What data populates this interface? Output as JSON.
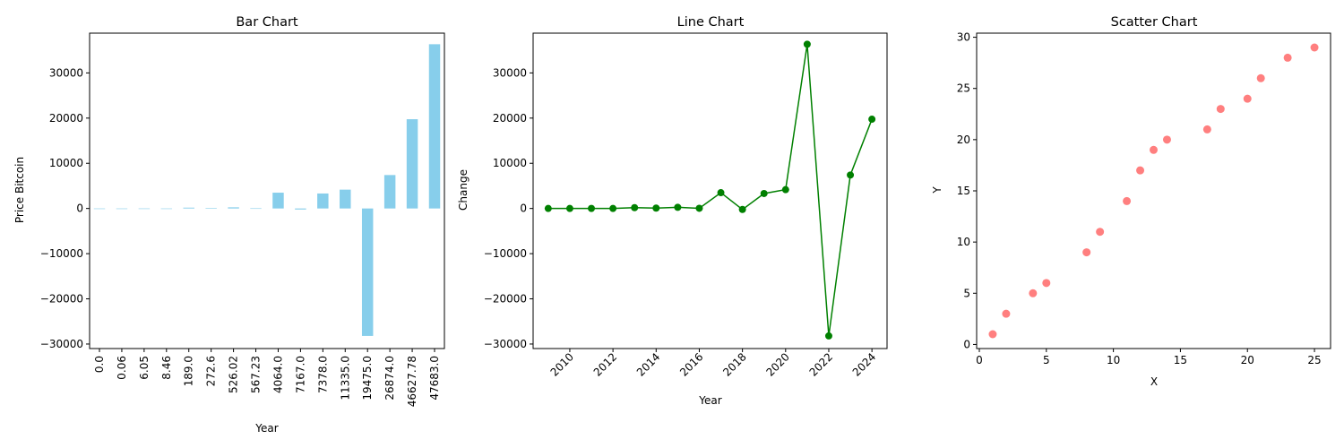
{
  "chart_data": [
    {
      "type": "bar",
      "title": "Bar Chart",
      "xlabel": "Year",
      "ylabel": "Price Bitcoin",
      "categories": [
        "0.0",
        "0.06",
        "6.05",
        "8.46",
        "189.0",
        "272.6",
        "526.02",
        "567.23",
        "4064.0",
        "7167.0",
        "7378.0",
        "11335.0",
        "19475.0",
        "26874.0",
        "46627.78",
        "47683.0"
      ],
      "values": [
        0,
        0.06,
        5.99,
        2.41,
        180.54,
        83.6,
        253.42,
        41.21,
        3496.77,
        -227.0,
        3314.0,
        4168.0,
        -28208.0,
        7399.0,
        19753.78,
        36348.0
      ],
      "ylim": [
        -31000,
        38800
      ],
      "yticks": [
        -30000,
        -20000,
        -10000,
        0,
        10000,
        20000,
        30000
      ],
      "color": "#87ceeb",
      "grid": false
    },
    {
      "type": "line",
      "title": "Line Chart",
      "xlabel": "Year",
      "ylabel": "Change",
      "x": [
        2009,
        2010,
        2011,
        2012,
        2013,
        2014,
        2015,
        2016,
        2017,
        2018,
        2019,
        2020,
        2021,
        2022,
        2023,
        2024
      ],
      "values": [
        0,
        0.06,
        5.99,
        2.41,
        180.54,
        83.6,
        253.42,
        41.21,
        3496.77,
        -227.0,
        3314.0,
        4168.0,
        36348.0,
        -28208.0,
        7399.0,
        19753.78
      ],
      "xlim": [
        2008.3,
        2024.7
      ],
      "xticks": [
        2010,
        2012,
        2014,
        2016,
        2018,
        2020,
        2022,
        2024
      ],
      "ylim": [
        -31000,
        38800
      ],
      "yticks": [
        -30000,
        -20000,
        -10000,
        0,
        10000,
        20000,
        30000
      ],
      "color": "#008000",
      "marker": "circle",
      "grid": false
    },
    {
      "type": "scatter",
      "title": "Scatter Chart",
      "xlabel": "X",
      "ylabel": "Y",
      "x": [
        1,
        2,
        4,
        5,
        8,
        9,
        11,
        12,
        13,
        14,
        17,
        18,
        20,
        21,
        23,
        25
      ],
      "y": [
        1,
        3,
        5,
        6,
        9,
        11,
        14,
        17,
        19,
        20,
        21,
        23,
        24,
        26,
        28,
        29
      ],
      "xlim": [
        -0.2,
        26.2
      ],
      "xticks": [
        0,
        5,
        10,
        15,
        20,
        25
      ],
      "ylim": [
        -0.4,
        30.4
      ],
      "yticks": [
        0,
        5,
        10,
        15,
        20,
        25,
        30
      ],
      "color": "#ff0000",
      "alpha": 0.5,
      "grid": false
    }
  ]
}
